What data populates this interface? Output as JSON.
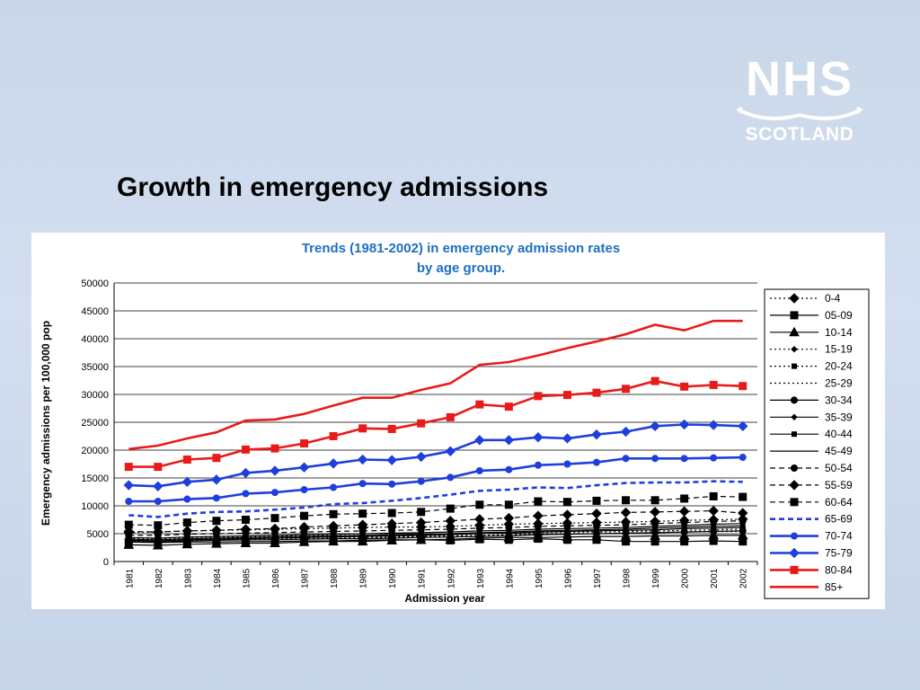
{
  "logo": {
    "org": "NHS",
    "region": "SCOTLAND"
  },
  "slide": {
    "title": "Growth in emergency admissions"
  },
  "chart_data": {
    "type": "line",
    "title": "Trends (1981-2002) in emergency admission rates",
    "subtitle": "by age group.",
    "title_color": "#1f6fbf",
    "xlabel": "Admission year",
    "ylabel": "Emergency admissions per 100,000 pop",
    "ylim": [
      0,
      50000
    ],
    "yticks": [
      0,
      5000,
      10000,
      15000,
      20000,
      25000,
      30000,
      35000,
      40000,
      45000,
      50000
    ],
    "grid": true,
    "legend_position": "right",
    "categories": [
      "1981",
      "1982",
      "1983",
      "1984",
      "1985",
      "1986",
      "1987",
      "1988",
      "1989",
      "1990",
      "1991",
      "1992",
      "1993",
      "1994",
      "1995",
      "1996",
      "1997",
      "1998",
      "1999",
      "2000",
      "2001",
      "2002"
    ],
    "series": [
      {
        "name": "0-4",
        "color": "#000000",
        "style": "dotted",
        "marker": "diamond",
        "values": [
          5200,
          5300,
          5500,
          5600,
          5700,
          5800,
          5900,
          6000,
          6100,
          6200,
          6200,
          6300,
          6500,
          6700,
          6800,
          6900,
          7000,
          7100,
          7200,
          7400,
          7500,
          7600
        ]
      },
      {
        "name": "05-09",
        "color": "#000000",
        "style": "solid",
        "marker": "square",
        "values": [
          3500,
          3400,
          3500,
          3500,
          3600,
          3600,
          3700,
          3700,
          3800,
          3900,
          3900,
          3800,
          4000,
          3900,
          4100,
          3900,
          3900,
          3600,
          3600,
          3600,
          3700,
          3600
        ]
      },
      {
        "name": "10-14",
        "color": "#000000",
        "style": "solid",
        "marker": "triangle",
        "values": [
          3000,
          2900,
          3100,
          3200,
          3300,
          3300,
          3500,
          3600,
          3600,
          3800,
          3900,
          4000,
          4200,
          4300,
          4300,
          4400,
          4500,
          4500,
          4600,
          4600,
          4700,
          4700
        ]
      },
      {
        "name": "15-19",
        "color": "#000000",
        "style": "dotted",
        "marker": "smalldiamond",
        "values": [
          4200,
          4100,
          4300,
          4400,
          4500,
          4600,
          4600,
          4700,
          4700,
          4800,
          4800,
          4900,
          5000,
          5100,
          5200,
          5300,
          5300,
          5400,
          5500,
          5600,
          5700,
          5800
        ]
      },
      {
        "name": "20-24",
        "color": "#000000",
        "style": "dotted",
        "marker": "smallsquare",
        "values": [
          3900,
          3800,
          4000,
          4100,
          4200,
          4200,
          4300,
          4400,
          4400,
          4500,
          4500,
          4600,
          4700,
          4800,
          4900,
          5000,
          5000,
          5100,
          5200,
          5300,
          5400,
          5500
        ]
      },
      {
        "name": "25-29",
        "color": "#000000",
        "style": "dotted",
        "marker": "none",
        "values": [
          3700,
          3600,
          3800,
          3900,
          4000,
          4000,
          4100,
          4200,
          4200,
          4300,
          4400,
          4500,
          4600,
          4700,
          4800,
          4900,
          5000,
          5100,
          5200,
          5300,
          5400,
          5400
        ]
      },
      {
        "name": "30-34",
        "color": "#000000",
        "style": "solid",
        "marker": "dot",
        "values": [
          3600,
          3500,
          3700,
          3800,
          3900,
          3900,
          4000,
          4100,
          4100,
          4200,
          4300,
          4400,
          4500,
          4600,
          4800,
          4900,
          5000,
          5100,
          5200,
          5300,
          5400,
          5500
        ]
      },
      {
        "name": "35-39",
        "color": "#000000",
        "style": "solid",
        "marker": "smalldiamond",
        "values": [
          3800,
          3700,
          3900,
          4000,
          4100,
          4200,
          4300,
          4400,
          4500,
          4600,
          4700,
          4800,
          5000,
          5100,
          5300,
          5400,
          5500,
          5600,
          5700,
          5900,
          6000,
          6100
        ]
      },
      {
        "name": "40-44",
        "color": "#000000",
        "style": "solid",
        "marker": "smallsquare",
        "values": [
          4000,
          3900,
          4100,
          4200,
          4300,
          4400,
          4500,
          4600,
          4700,
          4800,
          4900,
          5000,
          5200,
          5300,
          5500,
          5600,
          5700,
          5800,
          6000,
          6200,
          6300,
          6400
        ]
      },
      {
        "name": "45-49",
        "color": "#000000",
        "style": "solid",
        "marker": "none",
        "values": [
          4300,
          4200,
          4400,
          4500,
          4600,
          4700,
          4800,
          4900,
          5000,
          5100,
          5200,
          5300,
          5500,
          5600,
          5800,
          5900,
          6000,
          6100,
          6300,
          6500,
          6700,
          6800
        ]
      },
      {
        "name": "50-54",
        "color": "#000000",
        "style": "dashed",
        "marker": "dot",
        "values": [
          4700,
          4700,
          4900,
          5000,
          5100,
          5200,
          5300,
          5400,
          5500,
          5600,
          5700,
          5800,
          6000,
          6100,
          6300,
          6400,
          6500,
          6600,
          6800,
          7000,
          7200,
          7300
        ]
      },
      {
        "name": "55-59",
        "color": "#000000",
        "style": "dashed",
        "marker": "diamond",
        "values": [
          5400,
          5300,
          5500,
          5600,
          5800,
          5900,
          6200,
          6400,
          6600,
          6800,
          7000,
          7300,
          7600,
          7800,
          8200,
          8400,
          8600,
          8800,
          8900,
          9000,
          9100,
          8700
        ]
      },
      {
        "name": "60-64",
        "color": "#000000",
        "style": "dashed",
        "marker": "square",
        "values": [
          6600,
          6500,
          7000,
          7300,
          7500,
          7800,
          8200,
          8500,
          8600,
          8700,
          8900,
          9500,
          10200,
          10200,
          10800,
          10700,
          10900,
          11000,
          11000,
          11300,
          11700,
          11600
        ]
      },
      {
        "name": "65-69",
        "color": "#1f3fdd",
        "style": "dashed",
        "marker": "none",
        "values": [
          8300,
          8000,
          8600,
          8900,
          9000,
          9300,
          9700,
          10300,
          10500,
          10900,
          11400,
          12000,
          12700,
          12900,
          13300,
          13200,
          13700,
          14100,
          14200,
          14200,
          14400,
          14300
        ]
      },
      {
        "name": "70-74",
        "color": "#1f3fdd",
        "style": "solid",
        "marker": "dot",
        "values": [
          10800,
          10800,
          11200,
          11400,
          12200,
          12400,
          12900,
          13300,
          14000,
          13900,
          14400,
          15100,
          16300,
          16500,
          17300,
          17500,
          17800,
          18500,
          18500,
          18500,
          18600,
          18700
        ]
      },
      {
        "name": "75-79",
        "color": "#1f3fdd",
        "style": "solid",
        "marker": "diamond",
        "values": [
          13700,
          13500,
          14300,
          14700,
          15900,
          16300,
          16900,
          17600,
          18300,
          18200,
          18800,
          19800,
          21800,
          21800,
          22300,
          22100,
          22800,
          23300,
          24300,
          24600,
          24500,
          24300
        ]
      },
      {
        "name": "80-84",
        "color": "#e81b1b",
        "style": "solid",
        "marker": "square",
        "values": [
          17000,
          17000,
          18300,
          18600,
          20100,
          20300,
          21200,
          22500,
          23900,
          23800,
          24800,
          25900,
          28200,
          27800,
          29700,
          29900,
          30300,
          31000,
          32400,
          31400,
          31700,
          31500
        ]
      },
      {
        "name": "85+",
        "color": "#e81b1b",
        "style": "solid",
        "marker": "none",
        "values": [
          20200,
          20800,
          22100,
          23200,
          25300,
          25500,
          26500,
          28000,
          29400,
          29400,
          30800,
          32000,
          35300,
          35800,
          37000,
          38300,
          39500,
          40800,
          42500,
          41500,
          43200,
          43200
        ]
      }
    ]
  }
}
